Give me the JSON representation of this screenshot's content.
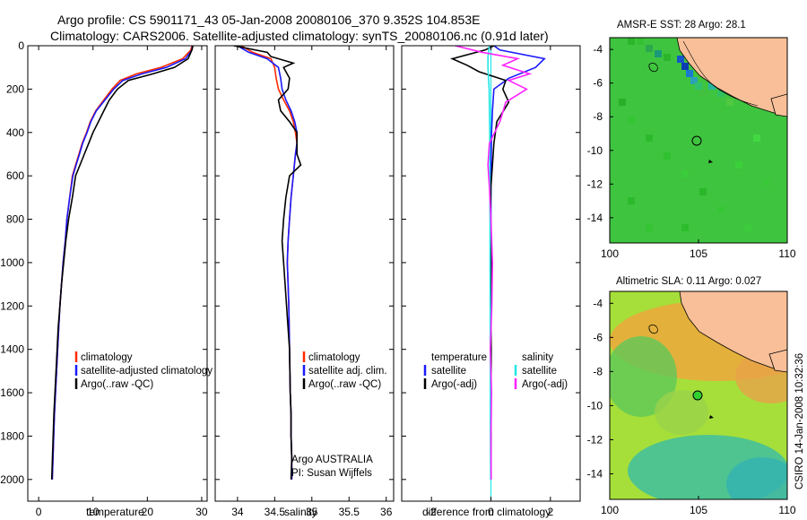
{
  "header": {
    "line1": "Argo profile: CS 5901171_43 05-Jan-2008 20080106_370 9.352S 104.853E",
    "line2": "Climatology: CARS2006. Satellite-adjusted climatology: synTS_20080106.nc (0.91d later)"
  },
  "footer": {
    "credit": "CSIRO 14-Jan-2008 10:32:36"
  },
  "colors": {
    "climatology": "#ff2a00",
    "satellite": "#1a1aff",
    "argo": "#000000",
    "sal_satellite": "#22e6e6",
    "sal_argo": "#ff22ff",
    "land": "#f8bf98",
    "ocean_green": "#2fd02f"
  },
  "chart_data": [
    {
      "type": "line",
      "xlabel": "temperature",
      "xlim": [
        -2,
        31
      ],
      "ylim": [
        2100,
        0
      ],
      "xticks": [
        0,
        10,
        20,
        30
      ],
      "yticks": [
        0,
        200,
        400,
        600,
        800,
        1000,
        1200,
        1400,
        1600,
        1800,
        2000
      ],
      "legend": [
        "climatology",
        "satellite-adjusted climatology",
        "Argo(..raw -QC)"
      ],
      "series": [
        {
          "name": "climatology",
          "color": "#ff2a00",
          "x": [
            28.2,
            28.0,
            26.5,
            22.5,
            18,
            15,
            13.5,
            12,
            10.5,
            9.5,
            8.8,
            8.0,
            7.4,
            6.8,
            6.2,
            5.7,
            5.2,
            4.9,
            4.5,
            4.2,
            3.9,
            3.7,
            3.5,
            3.3,
            3.1,
            2.9,
            2.7,
            2.5
          ],
          "y": [
            0,
            20,
            60,
            100,
            130,
            160,
            200,
            250,
            300,
            350,
            400,
            450,
            500,
            550,
            600,
            700,
            800,
            900,
            1000,
            1100,
            1200,
            1300,
            1400,
            1500,
            1600,
            1700,
            1850,
            2000
          ]
        },
        {
          "name": "satellite-adjusted climatology",
          "color": "#1a1aff",
          "x": [
            28.3,
            28.2,
            27,
            23.5,
            19,
            15.5,
            13.8,
            12.2,
            10.6,
            9.6,
            8.9,
            8.1,
            7.5,
            6.9,
            6.3,
            5.7,
            5.2,
            4.9,
            4.5,
            4.2,
            3.9,
            3.7,
            3.5,
            3.3,
            3.1,
            2.9,
            2.7,
            2.5
          ],
          "y": [
            0,
            20,
            60,
            100,
            130,
            160,
            200,
            250,
            300,
            350,
            400,
            450,
            500,
            550,
            600,
            700,
            800,
            900,
            1000,
            1100,
            1200,
            1300,
            1400,
            1500,
            1600,
            1700,
            1850,
            2000
          ]
        },
        {
          "name": "Argo(..raw -QC)",
          "color": "#000000",
          "x": [
            28.4,
            28.2,
            27.5,
            25,
            21,
            16.5,
            14.5,
            13,
            12,
            11,
            10,
            9.2,
            8.4,
            7.6,
            6.8,
            6.2,
            5.5,
            5.0,
            4.6,
            4.2,
            3.9,
            3.6,
            3.4,
            3.2,
            3.0,
            2.8,
            2.6,
            2.4
          ],
          "y": [
            0,
            20,
            60,
            100,
            130,
            160,
            200,
            250,
            300,
            350,
            400,
            450,
            500,
            550,
            600,
            700,
            800,
            900,
            1000,
            1100,
            1200,
            1300,
            1400,
            1500,
            1600,
            1700,
            1850,
            2000
          ]
        }
      ]
    },
    {
      "type": "line",
      "xlabel": "salinity",
      "xlim": [
        33.7,
        36.1
      ],
      "ylim": [
        2100,
        0
      ],
      "xticks": [
        34,
        34.5,
        35,
        35.5,
        36
      ],
      "legend": [
        "climatology",
        "satellite adj. clim.",
        "Argo(..raw -QC)"
      ],
      "annotation": [
        "Argo AUSTRALIA",
        "PI: Susan Wijffels"
      ],
      "series": [
        {
          "name": "climatology",
          "color": "#ff2a00",
          "x": [
            34.05,
            34.2,
            34.45,
            34.5,
            34.52,
            34.55,
            34.62,
            34.7,
            34.75,
            34.78,
            34.8,
            34.78,
            34.75,
            34.72,
            34.7,
            34.68,
            34.67,
            34.68,
            34.69,
            34.7,
            34.71,
            34.72,
            34.72,
            34.73,
            34.73
          ],
          "y": [
            0,
            30,
            60,
            100,
            150,
            200,
            250,
            300,
            350,
            400,
            450,
            500,
            600,
            700,
            800,
            900,
            1000,
            1100,
            1200,
            1400,
            1600,
            1700,
            1800,
            1900,
            2000
          ]
        },
        {
          "name": "satellite adj. clim.",
          "color": "#1a1aff",
          "x": [
            34.0,
            34.15,
            34.4,
            34.55,
            34.58,
            34.6,
            34.65,
            34.72,
            34.77,
            34.8,
            34.8,
            34.78,
            34.75,
            34.72,
            34.7,
            34.68,
            34.67,
            34.68,
            34.69,
            34.7,
            34.71,
            34.72,
            34.72,
            34.73,
            34.73
          ],
          "y": [
            0,
            30,
            60,
            100,
            150,
            200,
            250,
            300,
            350,
            400,
            450,
            500,
            600,
            700,
            800,
            900,
            1000,
            1100,
            1200,
            1400,
            1600,
            1700,
            1800,
            1900,
            2000
          ]
        },
        {
          "name": "Argo(..raw -QC)",
          "color": "#000000",
          "x": [
            33.95,
            34.4,
            34.45,
            34.75,
            34.62,
            34.7,
            34.68,
            34.55,
            34.58,
            34.7,
            34.8,
            34.8,
            34.85,
            34.7,
            34.65,
            34.62,
            34.6,
            34.62,
            34.66,
            34.7,
            34.71,
            34.72,
            34.72,
            34.73,
            34.72
          ],
          "y": [
            0,
            30,
            50,
            80,
            100,
            150,
            200,
            250,
            300,
            350,
            400,
            500,
            550,
            600,
            700,
            800,
            900,
            1000,
            1200,
            1400,
            1600,
            1700,
            1800,
            1900,
            2000
          ]
        }
      ]
    },
    {
      "type": "line",
      "xlabel": "difference from climatology",
      "xlim": [
        -3,
        3
      ],
      "ylim": [
        2100,
        0
      ],
      "xticks": [
        -2,
        0,
        2
      ],
      "legend_left": [
        "temperature",
        "satellite",
        "Argo(-adj)"
      ],
      "legend_right": [
        "salinity",
        "satellite",
        "Argo(-adj)"
      ],
      "series": [
        {
          "name": "satellite",
          "color": "#1a1aff",
          "x": [
            0.1,
            0.3,
            1.8,
            1.5,
            0.6,
            0.1,
            0.05,
            0.02,
            0,
            0,
            0,
            0,
            0
          ],
          "y": [
            0,
            20,
            60,
            100,
            150,
            200,
            300,
            400,
            600,
            800,
            1200,
            1600,
            2000
          ]
        },
        {
          "name": "Argo(-adj)",
          "color": "#000000",
          "x": [
            0.1,
            -0.2,
            -1.3,
            -0.8,
            -0.4,
            0.5,
            0.4,
            0.6,
            0.2,
            0.1,
            0.05,
            0,
            -0.02,
            0.02,
            -0.01,
            0.01,
            0,
            0
          ],
          "y": [
            0,
            20,
            60,
            90,
            120,
            160,
            200,
            260,
            350,
            450,
            550,
            650,
            800,
            1000,
            1200,
            1400,
            1700,
            2000
          ]
        },
        {
          "name": "satellite",
          "color": "#22e6e6",
          "x": [
            -0.05,
            -0.1,
            -0.1,
            -0.08,
            -0.06,
            -0.05,
            -0.04,
            -0.04,
            -0.03,
            -0.03,
            -0.02,
            -0.02,
            -0.01
          ],
          "y": [
            0,
            50,
            100,
            150,
            200,
            300,
            400,
            600,
            800,
            1000,
            1400,
            1700,
            2000
          ]
        },
        {
          "name": "Argo(-adj)",
          "color": "#ff22ff",
          "x": [
            -1.2,
            -0.3,
            0.9,
            0.4,
            1.3,
            0.6,
            1.2,
            0.5,
            0.3,
            -0.05,
            -0.1,
            -0.05,
            0.0,
            0.05,
            0.03,
            -0.02,
            0.02,
            0.0,
            0.01
          ],
          "y": [
            0,
            30,
            60,
            90,
            130,
            160,
            200,
            260,
            350,
            450,
            550,
            650,
            800,
            1000,
            1200,
            1400,
            1600,
            1800,
            2000
          ]
        }
      ]
    },
    {
      "type": "heatmap",
      "title": "AMSR-E SST: 28  Argo: 28.1",
      "xlim": [
        100,
        110
      ],
      "ylim": [
        -15.5,
        -3.3
      ],
      "xticks": [
        100,
        105,
        110
      ],
      "yticks": [
        -4,
        -6,
        -8,
        -10,
        -12,
        -14
      ],
      "argo_position": [
        104.85,
        -9.35
      ]
    },
    {
      "type": "heatmap",
      "title": "Altimetric SLA: 0.11  Argo: 0.027",
      "xlim": [
        100,
        110
      ],
      "ylim": [
        -15.5,
        -3.3
      ],
      "xticks": [
        100,
        105,
        110
      ],
      "yticks": [
        -4,
        -6,
        -8,
        -10,
        -12,
        -14
      ],
      "argo_position": [
        104.85,
        -9.35
      ]
    }
  ]
}
